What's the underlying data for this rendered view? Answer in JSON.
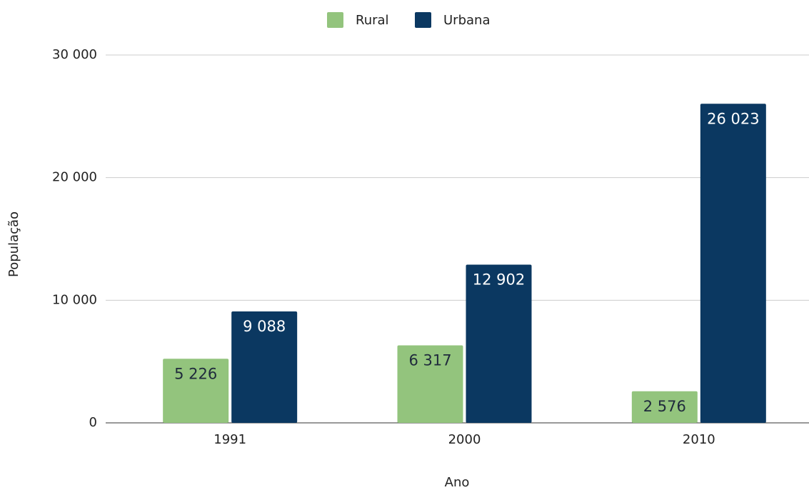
{
  "chart_data": {
    "type": "bar",
    "categories": [
      "1991",
      "2000",
      "2010"
    ],
    "series": [
      {
        "name": "Rural",
        "color": "#93c47d",
        "values": [
          5226,
          6317,
          2576
        ],
        "value_labels": [
          "5 226",
          "6 317",
          "2 576"
        ]
      },
      {
        "name": "Urbana",
        "color": "#0b3861",
        "values": [
          9088,
          12902,
          26023
        ],
        "value_labels": [
          "9 088",
          "12 902",
          "26 023"
        ]
      }
    ],
    "x_label": "Ano",
    "y_label": "População",
    "ylim": [
      0,
      30000
    ],
    "yticks": [
      0,
      {
        "value": 10000,
        "label": "10 000"
      },
      {
        "value": 20000,
        "label": "20 000"
      },
      {
        "value": 30000,
        "label": "30 000"
      }
    ],
    "grid": true,
    "legend": "top"
  }
}
